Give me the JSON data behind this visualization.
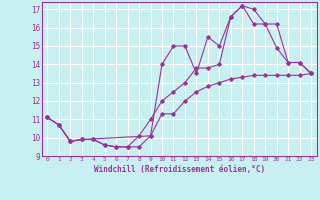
{
  "xlabel": "Windchill (Refroidissement éolien,°C)",
  "background_color": "#c8f0f0",
  "line_color": "#993399",
  "grid_color": "#ffffff",
  "xlim": [
    -0.5,
    23.5
  ],
  "ylim": [
    9,
    17.4
  ],
  "yticks": [
    9,
    10,
    11,
    12,
    13,
    14,
    15,
    16,
    17
  ],
  "xticks": [
    0,
    1,
    2,
    3,
    4,
    5,
    6,
    7,
    8,
    9,
    10,
    11,
    12,
    13,
    14,
    15,
    16,
    17,
    18,
    19,
    20,
    21,
    22,
    23
  ],
  "line1_x": [
    0,
    1,
    2,
    3,
    4,
    5,
    6,
    7,
    8,
    9,
    10,
    11,
    12,
    13,
    14,
    15,
    16,
    17,
    18,
    19,
    20,
    21,
    22,
    23
  ],
  "line1_y": [
    11.1,
    10.7,
    9.8,
    9.9,
    9.9,
    9.6,
    9.5,
    9.5,
    9.5,
    10.1,
    11.3,
    11.3,
    12.0,
    12.5,
    12.8,
    13.0,
    13.2,
    13.3,
    13.4,
    13.4,
    13.4,
    13.4,
    13.4,
    13.5
  ],
  "line2_x": [
    0,
    1,
    2,
    3,
    9,
    10,
    11,
    12,
    13,
    14,
    15,
    16,
    17,
    18,
    19,
    20,
    21,
    22,
    23
  ],
  "line2_y": [
    11.1,
    10.7,
    9.8,
    9.9,
    10.1,
    14.0,
    15.0,
    15.0,
    13.5,
    15.5,
    15.0,
    16.6,
    17.2,
    17.0,
    16.2,
    14.9,
    14.1,
    14.1,
    13.5
  ],
  "line3_x": [
    0,
    1,
    2,
    3,
    4,
    5,
    6,
    7,
    8,
    9,
    10,
    11,
    12,
    13,
    14,
    15,
    16,
    17,
    18,
    19,
    20,
    21,
    22,
    23
  ],
  "line3_y": [
    11.1,
    10.7,
    9.8,
    9.9,
    9.9,
    9.6,
    9.5,
    9.5,
    10.1,
    11.0,
    12.0,
    12.5,
    13.0,
    13.8,
    13.8,
    14.0,
    16.6,
    17.2,
    16.2,
    16.2,
    16.2,
    14.1,
    14.1,
    13.5
  ]
}
